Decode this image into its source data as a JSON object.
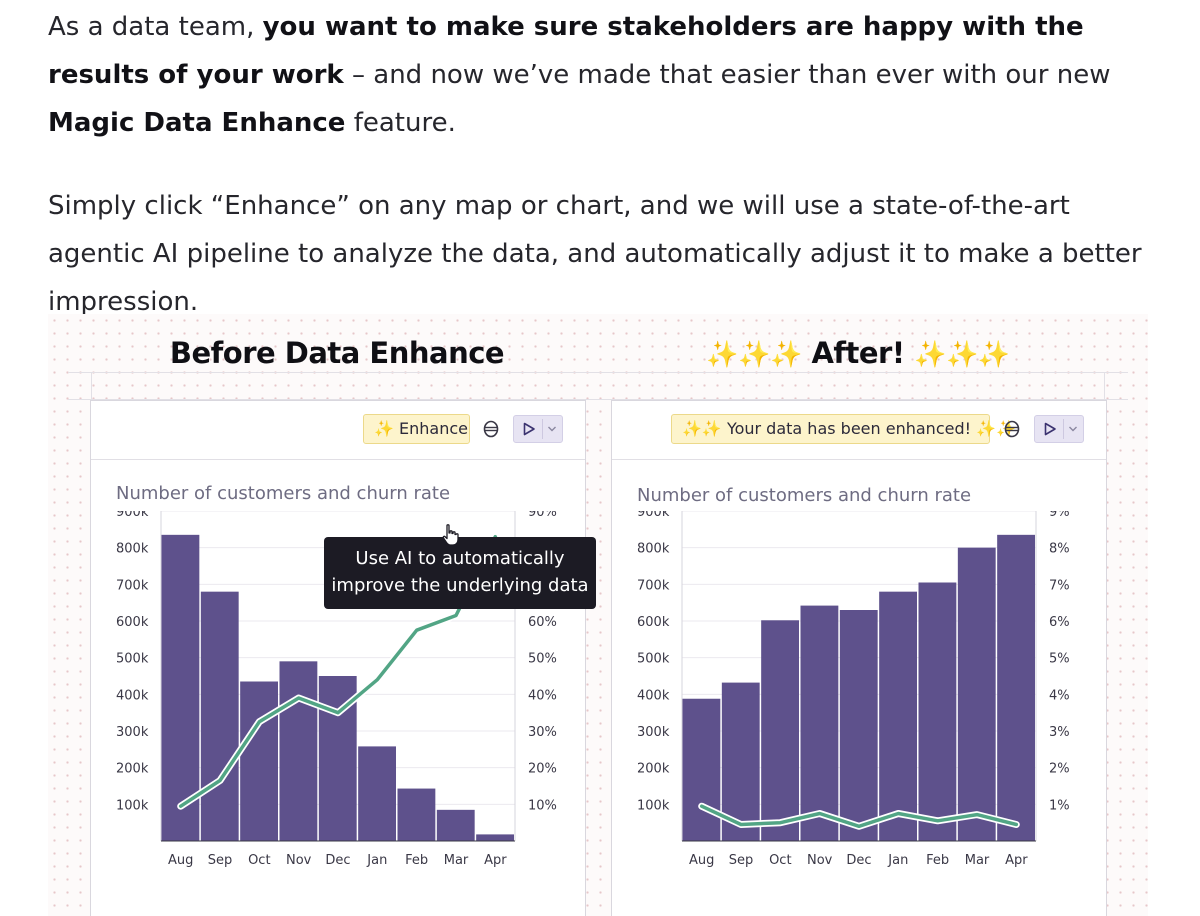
{
  "intro": {
    "p1": {
      "t1": "As a data team, ",
      "b1": "you want to make sure stakeholders are happy with the results of your work",
      "t2": " – and now we’ve made that easier than ever with our new ",
      "b2": "Magic Data Enhance",
      "t3": " feature."
    },
    "p2": "Simply click “Enhance” on any map or chart, and we will use a state-of-the-art agentic AI pipeline to analyze the data, and automatically adjust it to make a better impression."
  },
  "colors": {
    "bar": "#5e518c",
    "line": "#52a585",
    "pill_bg": "#fdf4cc",
    "run_bg": "#e7e4f3"
  },
  "before": {
    "heading": "Before Data Enhance",
    "enhance_button": {
      "sparkle": "✨",
      "label": "Enhance"
    },
    "db_icon": "database-icon",
    "run_icon": "play-icon",
    "dropdown_icon": "chevron-down-icon",
    "chart_title": "Number of customers and churn rate",
    "tooltip": {
      "line1": "Use AI to automatically",
      "line2": "improve the underlying data"
    }
  },
  "after": {
    "heading": "After!",
    "heading_sparkles_left": "✨✨✨",
    "heading_sparkles_right": "✨✨✨",
    "status_pill": {
      "sparkles_left": "✨✨",
      "label": "Your data has been enhanced!",
      "sparkles_right": "✨✨"
    },
    "chart_title": "Number of customers and churn rate"
  },
  "chart_data": [
    {
      "type": "bar",
      "title": "Number of customers and churn rate",
      "categories": [
        "Aug",
        "Sep",
        "Oct",
        "Nov",
        "Dec",
        "Jan",
        "Feb",
        "Mar",
        "Apr"
      ],
      "y_ticks": [
        "100k",
        "200k",
        "300k",
        "400k",
        "500k",
        "600k",
        "700k",
        "800k",
        "900k"
      ],
      "y2_ticks": [
        "10%",
        "20%",
        "30%",
        "40%",
        "50%",
        "60%",
        "70%",
        "80%",
        "90%"
      ],
      "ylim": [
        0,
        900000
      ],
      "y2lim": [
        0,
        90
      ],
      "series": [
        {
          "kind": "bar",
          "values": [
            835000,
            680000,
            435000,
            490000,
            450000,
            258000,
            143000,
            85000,
            18000
          ]
        },
        {
          "kind": "line",
          "values": [
            9.5,
            16.5,
            32.5,
            39,
            35,
            44,
            57.5,
            61.5,
            83
          ]
        }
      ]
    },
    {
      "type": "bar",
      "title": "Number of customers and churn rate",
      "categories": [
        "Aug",
        "Sep",
        "Oct",
        "Nov",
        "Dec",
        "Jan",
        "Feb",
        "Mar",
        "Apr"
      ],
      "y_ticks": [
        "100k",
        "200k",
        "300k",
        "400k",
        "500k",
        "600k",
        "700k",
        "800k",
        "900k"
      ],
      "y2_ticks": [
        "1%",
        "2%",
        "3%",
        "4%",
        "5%",
        "6%",
        "7%",
        "8%",
        "9%"
      ],
      "ylim": [
        0,
        900000
      ],
      "y2lim": [
        0,
        9
      ],
      "series": [
        {
          "kind": "bar",
          "values": [
            388000,
            432000,
            602000,
            642000,
            630000,
            680000,
            705000,
            800000,
            835000
          ]
        },
        {
          "kind": "line",
          "values": [
            0.95,
            0.45,
            0.5,
            0.75,
            0.4,
            0.75,
            0.55,
            0.72,
            0.45
          ]
        }
      ]
    }
  ]
}
